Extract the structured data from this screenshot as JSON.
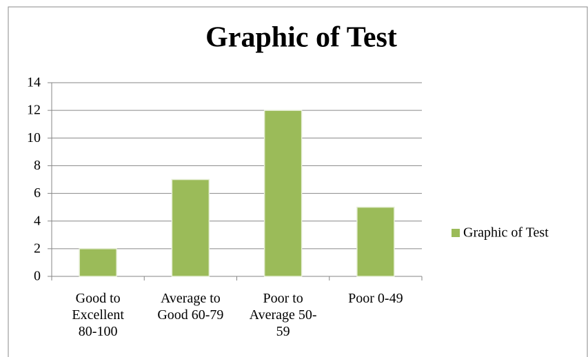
{
  "chart_data": {
    "type": "bar",
    "title": "Graphic of Test",
    "categories": [
      "Good to Excellent 80-100",
      "Average to Good 60-79",
      "Poor to Average 50-59",
      "Poor 0-49"
    ],
    "series": [
      {
        "name": "Graphic of Test",
        "color": "#9bbb59",
        "values": [
          2,
          7,
          12,
          5
        ]
      }
    ],
    "ylim": [
      0,
      14
    ],
    "yticks": [
      0,
      2,
      4,
      6,
      8,
      10,
      12,
      14
    ],
    "grid": true,
    "legend": "right"
  }
}
